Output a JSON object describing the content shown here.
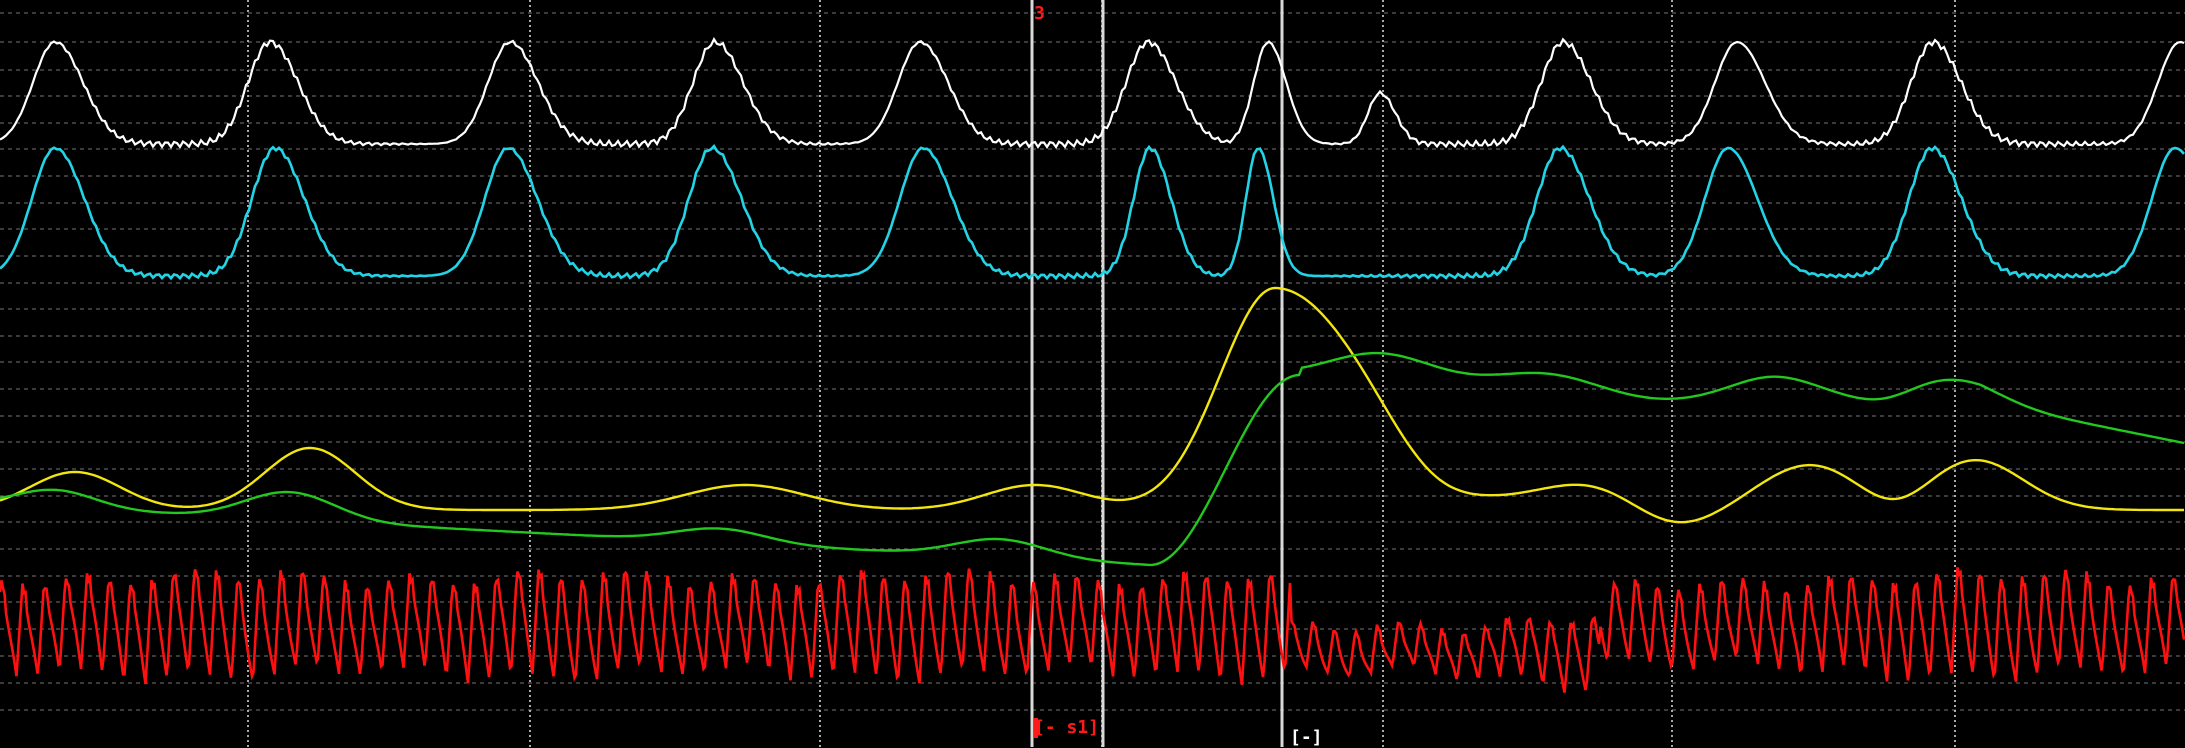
{
  "colors": {
    "background": "#000000",
    "grid_major": "#bbbbbb",
    "grid_minor": "#9a9a9a",
    "cursor": "#d8d8d8",
    "trace_white": "#ffffff",
    "trace_cyan": "#22d4e6",
    "trace_yellow": "#f2e60e",
    "trace_green": "#22c81e",
    "trace_red": "#ff1010",
    "marker_red": "#ff1a1a",
    "marker_white": "#ffffff"
  },
  "markers": {
    "top_label": "3",
    "bottom_label": "[- s1]",
    "event_label": "[-]"
  },
  "traces": [
    "white",
    "cyan",
    "yellow",
    "green",
    "red"
  ]
}
